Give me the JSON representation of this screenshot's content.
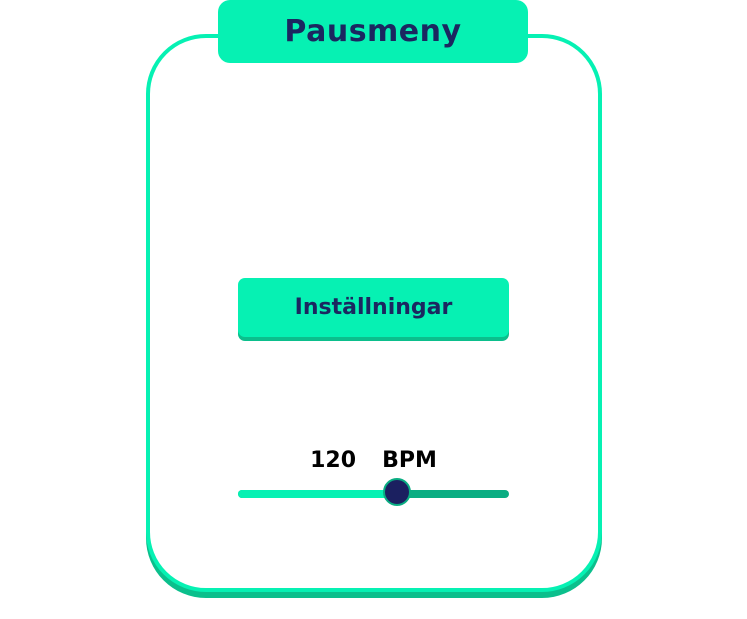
{
  "pause_menu": {
    "title": "Pausmeny",
    "settings_button_label": "Inställningar",
    "tempo": {
      "value_text": "120",
      "unit": "BPM",
      "slider_fraction": 0.59
    }
  },
  "colors": {
    "accent": "#06f1b3",
    "accent_shadow": "#0bbf8c",
    "text_dark": "#1b2760",
    "slider_track": "#0aad82",
    "slider_thumb": "#1b2060"
  }
}
